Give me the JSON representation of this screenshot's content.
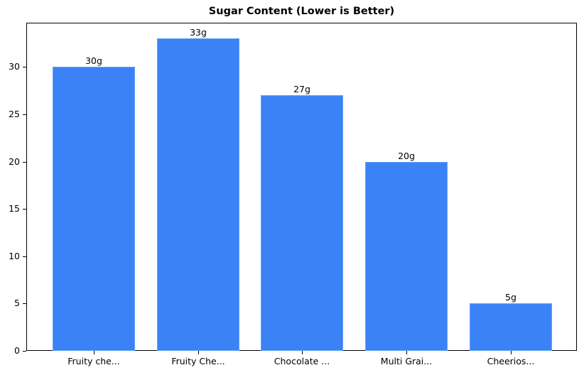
{
  "chart_data": {
    "type": "bar",
    "title": "Sugar Content (Lower is Better)",
    "xlabel": "",
    "ylabel": "",
    "categories": [
      "Fruity che...",
      "Fruity Che...",
      "Chocolate ...",
      "Multi Grai...",
      "Cheerios..."
    ],
    "values": [
      30,
      33,
      27,
      20,
      5
    ],
    "data_labels": [
      "30g",
      "33g",
      "27g",
      "20g",
      "5g"
    ],
    "ylim": [
      0,
      34.65
    ],
    "yticks": [
      0,
      5,
      10,
      15,
      20,
      25,
      30
    ],
    "grid": false,
    "legend": null,
    "bar_color": "#3b82f6",
    "bar_edge_color": "#60a5fa"
  }
}
